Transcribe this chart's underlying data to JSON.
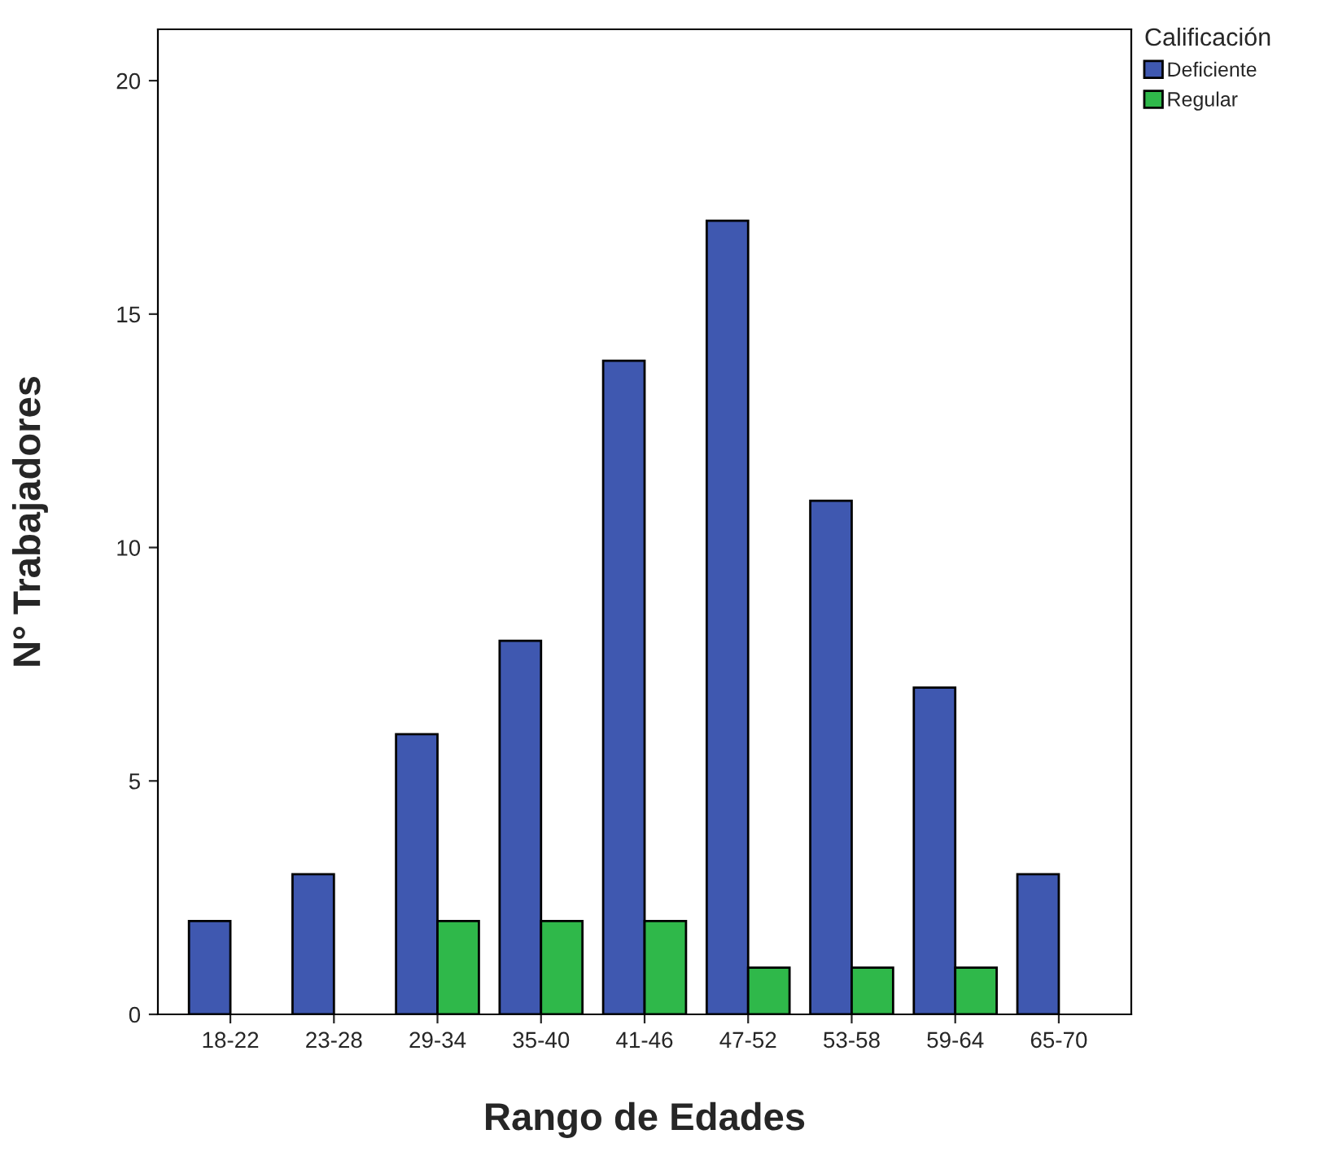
{
  "chart_data": {
    "type": "bar",
    "xlabel": "Rango de Edades",
    "ylabel": "N° Trabajadores",
    "legend_title": "Calificación",
    "categories": [
      "18-22",
      "23-28",
      "29-34",
      "35-40",
      "41-46",
      "47-52",
      "53-58",
      "59-64",
      "65-70"
    ],
    "series": [
      {
        "name": "Deficiente",
        "color": "#3f58b0",
        "values": [
          2,
          3,
          6,
          8,
          14,
          17,
          11,
          7,
          3
        ]
      },
      {
        "name": "Regular",
        "color": "#2fb84a",
        "values": [
          null,
          null,
          2,
          2,
          2,
          1,
          1,
          1,
          null
        ]
      }
    ],
    "ylim": [
      0,
      21.1
    ],
    "yticks": [
      0,
      5,
      10,
      15,
      20
    ],
    "grid": false,
    "legend": "top right"
  }
}
